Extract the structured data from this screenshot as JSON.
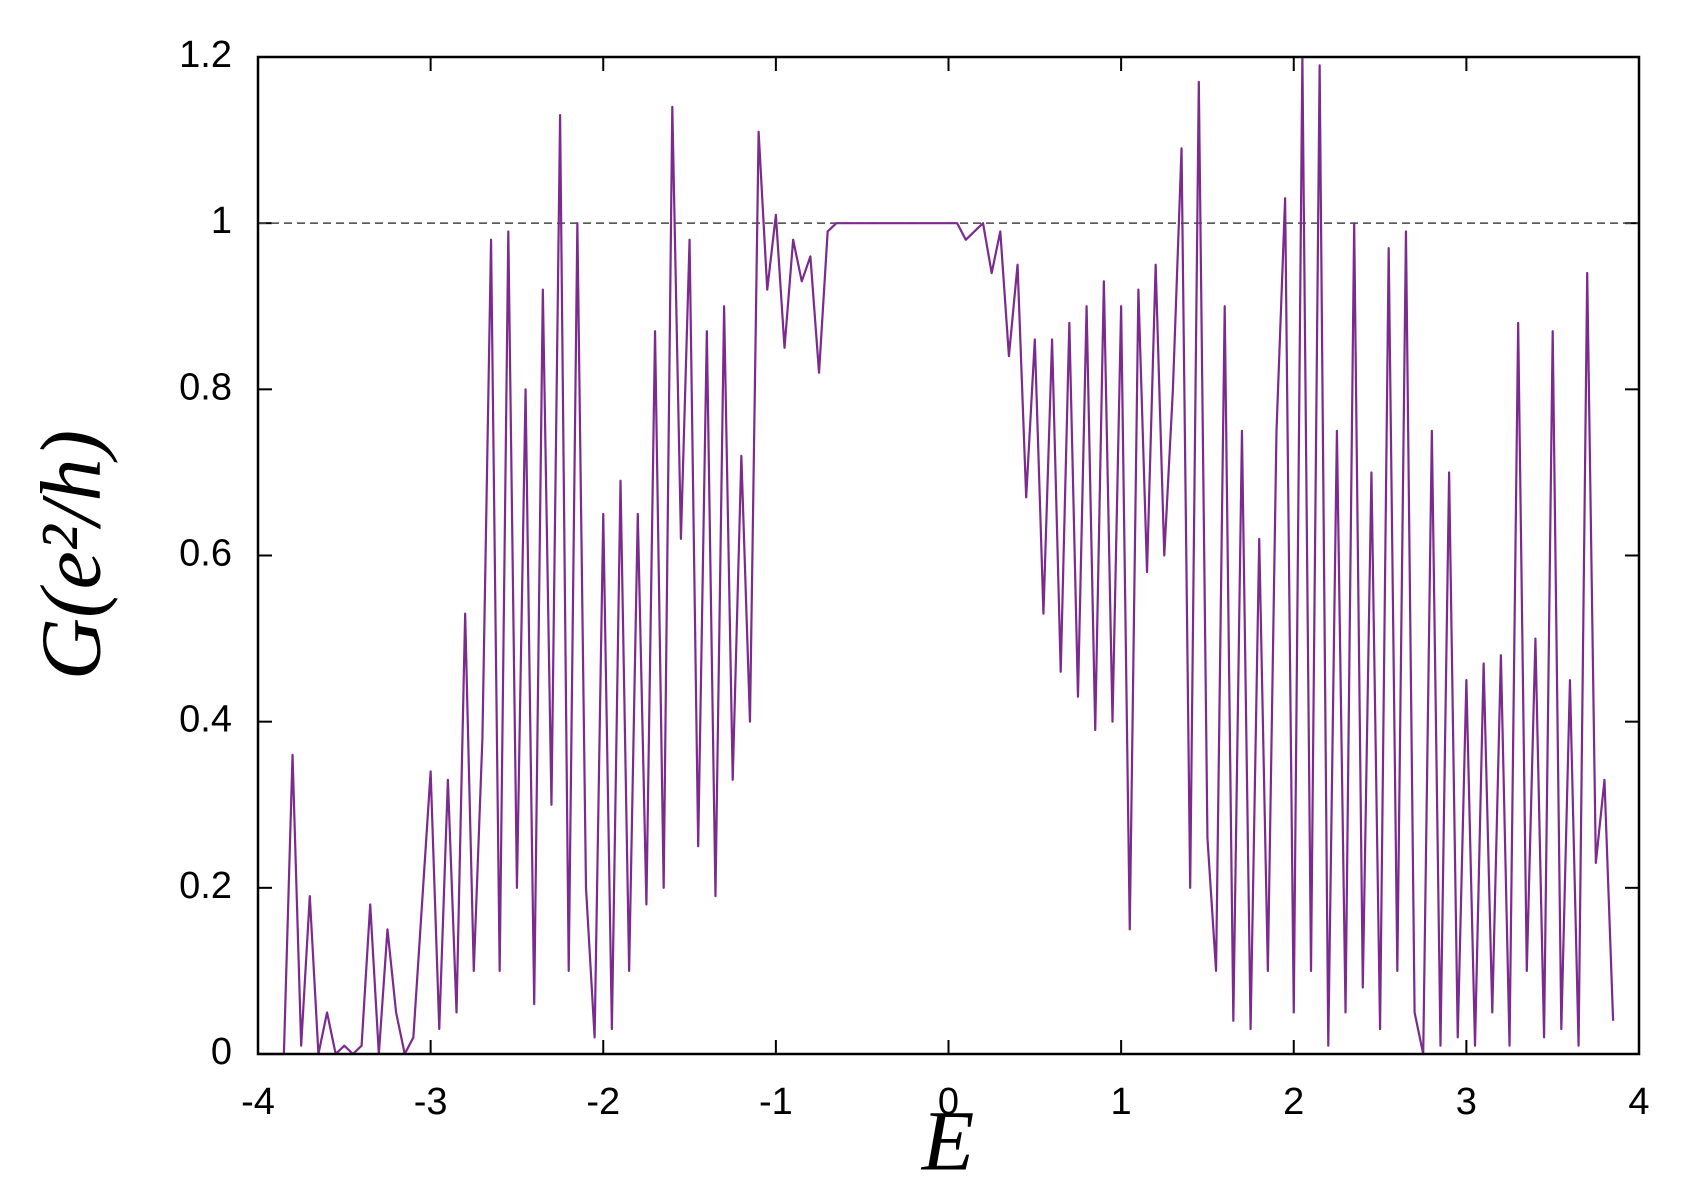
{
  "chart_data": {
    "type": "line",
    "xlabel": "E",
    "ylabel": "G(e²/h)",
    "x": [
      -4,
      -3.95,
      -3.9,
      -3.85,
      -3.8,
      -3.75,
      -3.7,
      -3.65,
      -3.6,
      -3.55,
      -3.5,
      -3.45,
      -3.4,
      -3.35,
      -3.3,
      -3.25,
      -3.2,
      -3.15,
      -3.1,
      -3.05,
      -3,
      -2.95,
      -2.9,
      -2.85,
      -2.8,
      -2.75,
      -2.7,
      -2.65,
      -2.6,
      -2.55,
      -2.5,
      -2.45,
      -2.4,
      -2.35,
      -2.3,
      -2.25,
      -2.2,
      -2.15,
      -2.1,
      -2.05,
      -2,
      -1.95,
      -1.9,
      -1.85,
      -1.8,
      -1.75,
      -1.7,
      -1.65,
      -1.6,
      -1.55,
      -1.5,
      -1.45,
      -1.4,
      -1.35,
      -1.3,
      -1.25,
      -1.2,
      -1.15,
      -1.1,
      -1.05,
      -1,
      -0.95,
      -0.9,
      -0.85,
      -0.8,
      -0.75,
      -0.7,
      -0.65,
      -0.6,
      -0.55,
      -0.5,
      -0.45,
      -0.4,
      -0.35,
      -0.3,
      -0.25,
      -0.2,
      -0.15,
      -0.1,
      -0.05,
      0,
      0.05,
      0.1,
      0.15,
      0.2,
      0.25,
      0.3,
      0.35,
      0.4,
      0.45,
      0.5,
      0.55,
      0.6,
      0.65,
      0.7,
      0.75,
      0.8,
      0.85,
      0.9,
      0.95,
      1,
      1.05,
      1.1,
      1.15,
      1.2,
      1.25,
      1.3,
      1.35,
      1.4,
      1.45,
      1.5,
      1.55,
      1.6,
      1.65,
      1.7,
      1.75,
      1.8,
      1.85,
      1.9,
      1.95,
      2,
      2.05,
      2.1,
      2.15,
      2.2,
      2.25,
      2.3,
      2.35,
      2.4,
      2.45,
      2.5,
      2.55,
      2.6,
      2.65,
      2.7,
      2.75,
      2.8,
      2.85,
      2.9,
      2.95,
      3,
      3.05,
      3.1,
      3.15,
      3.2,
      3.25,
      3.3,
      3.35,
      3.4,
      3.45,
      3.5,
      3.55,
      3.6,
      3.65,
      3.7,
      3.75,
      3.8,
      3.85
    ],
    "series": [
      {
        "color": "#7b2a8e",
        "values": [
          0,
          0,
          0,
          0,
          0.36,
          0.01,
          0.19,
          0,
          0.05,
          0,
          0.01,
          0,
          0.01,
          0.18,
          0,
          0.15,
          0.05,
          0,
          0.02,
          0.18,
          0.34,
          0.03,
          0.33,
          0.05,
          0.53,
          0.1,
          0.38,
          0.98,
          0.1,
          0.99,
          0.2,
          0.8,
          0.06,
          0.92,
          0.3,
          1.13,
          0.1,
          1,
          0.2,
          0.02,
          0.65,
          0.03,
          0.69,
          0.1,
          0.65,
          0.18,
          0.87,
          0.2,
          1.14,
          0.62,
          0.98,
          0.25,
          0.87,
          0.19,
          0.9,
          0.33,
          0.72,
          0.4,
          1.11,
          0.92,
          1.01,
          0.85,
          0.98,
          0.93,
          0.96,
          0.82,
          0.99,
          1,
          1,
          1,
          1,
          1,
          1,
          1,
          1,
          1,
          1,
          1,
          1,
          1,
          1,
          1,
          0.98,
          0.99,
          1,
          0.94,
          0.99,
          0.84,
          0.95,
          0.67,
          0.86,
          0.53,
          0.86,
          0.46,
          0.88,
          0.43,
          0.9,
          0.39,
          0.93,
          0.4,
          0.9,
          0.15,
          0.92,
          0.58,
          0.95,
          0.6,
          0.8,
          1.09,
          0.2,
          1.17,
          0.26,
          0.1,
          0.9,
          0.04,
          0.75,
          0.03,
          0.62,
          0.1,
          0.75,
          1.03,
          0.05,
          1.2,
          0.1,
          1.19,
          0.01,
          0.75,
          0.05,
          1,
          0.08,
          0.7,
          0.03,
          0.97,
          0.1,
          0.99,
          0.05,
          0,
          0.75,
          0.01,
          0.7,
          0.02,
          0.45,
          0.01,
          0.47,
          0.05,
          0.48,
          0.01,
          0.88,
          0.1,
          0.5,
          0.02,
          0.87,
          0.03,
          0.45,
          0.01,
          0.94,
          0.23,
          0.33,
          0.04
        ]
      }
    ],
    "xlim": [
      -4,
      4
    ],
    "xticks": [
      -4,
      -3,
      -2,
      -1,
      0,
      1,
      2,
      3,
      4
    ],
    "ylim": [
      0,
      1.2
    ],
    "yticks": [
      0,
      0.2,
      0.4,
      0.6,
      0.8,
      1,
      1.2
    ],
    "reference_line": 1
  }
}
